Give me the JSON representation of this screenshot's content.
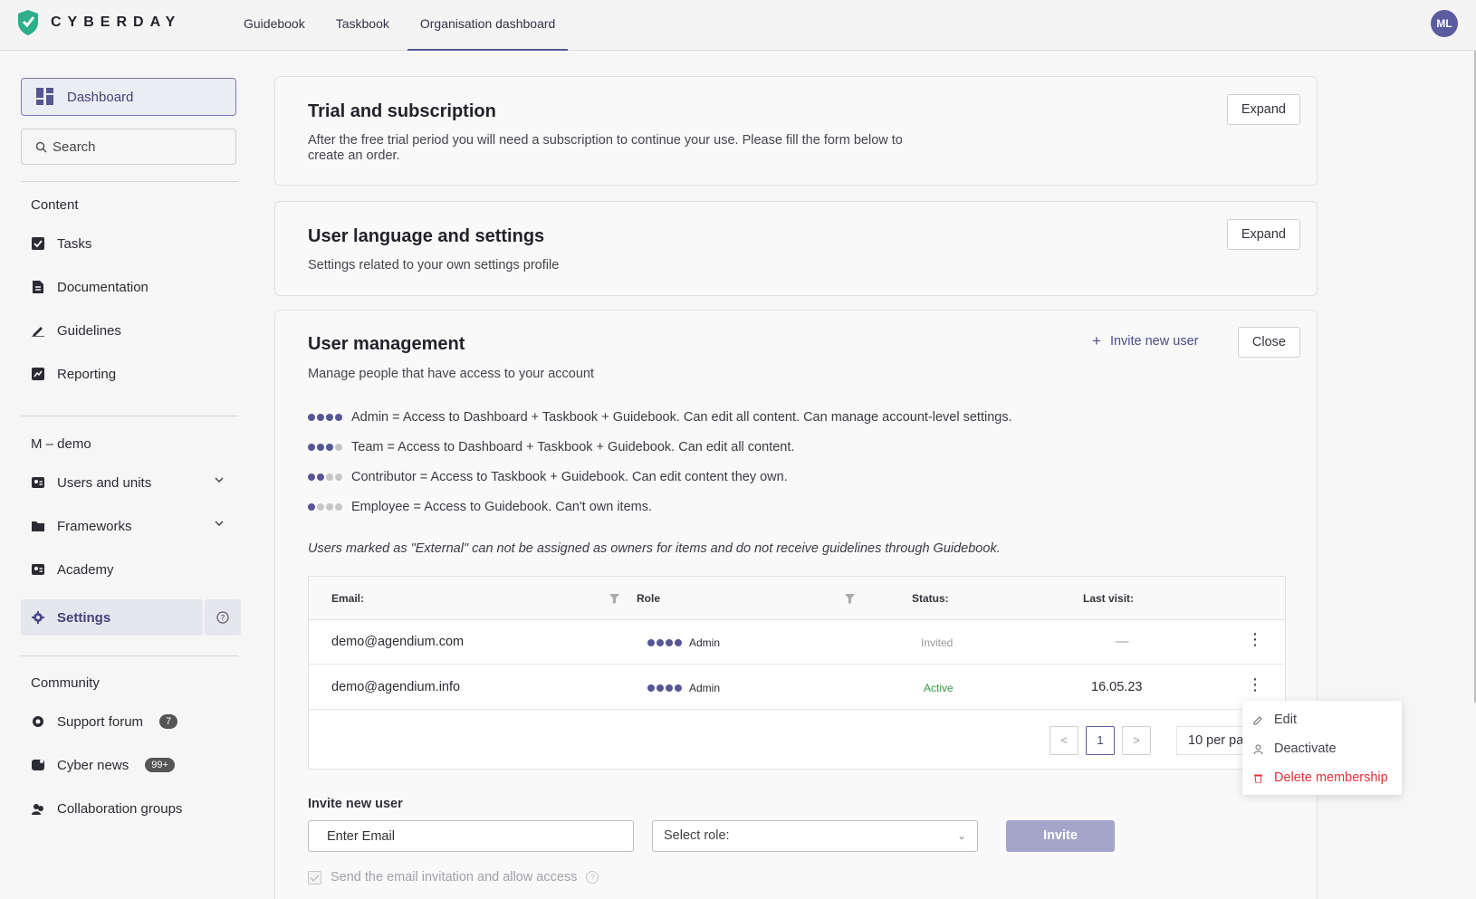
{
  "brand": {
    "name": "CYBERDAY",
    "accent": "#55558f",
    "logo_color": "#2fae8b"
  },
  "nav": {
    "tabs": [
      "Guidebook",
      "Taskbook",
      "Organisation dashboard"
    ],
    "active_tab": "Organisation dashboard"
  },
  "user": {
    "initials": "ML"
  },
  "sidebar": {
    "dashboard_label": "Dashboard",
    "search_placeholder": "Search",
    "content_title": "Content",
    "content_items": [
      "Tasks",
      "Documentation",
      "Guidelines",
      "Reporting"
    ],
    "org_title": "M – demo",
    "org_items": [
      "Users and units",
      "Frameworks",
      "Academy"
    ],
    "settings_label": "Settings",
    "community_title": "Community",
    "community_items": [
      {
        "label": "Support forum",
        "badge": "7"
      },
      {
        "label": "Cyber news",
        "badge": "99+"
      },
      {
        "label": "Collaboration groups",
        "badge": ""
      }
    ]
  },
  "trial_panel": {
    "title": "Trial and subscription",
    "description": "After the free trial period you will need a subscription to continue your use. Please fill the form below to create an order.",
    "button": "Expand"
  },
  "language_panel": {
    "title": "User language and settings",
    "description": "Settings related to your own settings profile",
    "button": "Expand"
  },
  "user_mgmt": {
    "title": "User management",
    "description": "Manage people that have access to your account",
    "invite_link": "Invite new user",
    "close_button": "Close",
    "roles": [
      {
        "level": 4,
        "text": "Admin = Access to Dashboard + Taskbook + Guidebook. Can edit all content. Can manage account-level settings."
      },
      {
        "level": 3,
        "text": "Team = Access to Dashboard + Taskbook + Guidebook. Can edit all content."
      },
      {
        "level": 2,
        "text": "Contributor = Access to Taskbook + Guidebook. Can edit content they own."
      },
      {
        "level": 1,
        "text": "Employee = Access to Guidebook. Can't own items."
      }
    ],
    "external_note": "Users marked as \"External\" can not be assigned as owners for items and do not receive guidelines through Guidebook.",
    "table": {
      "headers": {
        "email": "Email:",
        "role": "Role",
        "status": "Status:",
        "last_visit": "Last visit:"
      },
      "rows": [
        {
          "email": "demo@agendium.com",
          "role": "Admin",
          "status": "Invited",
          "last_visit": "—"
        },
        {
          "email": "demo@agendium.info",
          "role": "Admin",
          "status": "Active",
          "last_visit": "16.05.23"
        }
      ],
      "page": "1",
      "per_page": "10 per page"
    },
    "invite_form": {
      "label": "Invite new user",
      "email_placeholder": "Enter Email",
      "role_placeholder": "Select role:",
      "invite_button": "Invite",
      "send_email_label": "Send the email invitation and allow access"
    },
    "context_menu": [
      "Edit",
      "Deactivate",
      "Delete membership"
    ]
  }
}
